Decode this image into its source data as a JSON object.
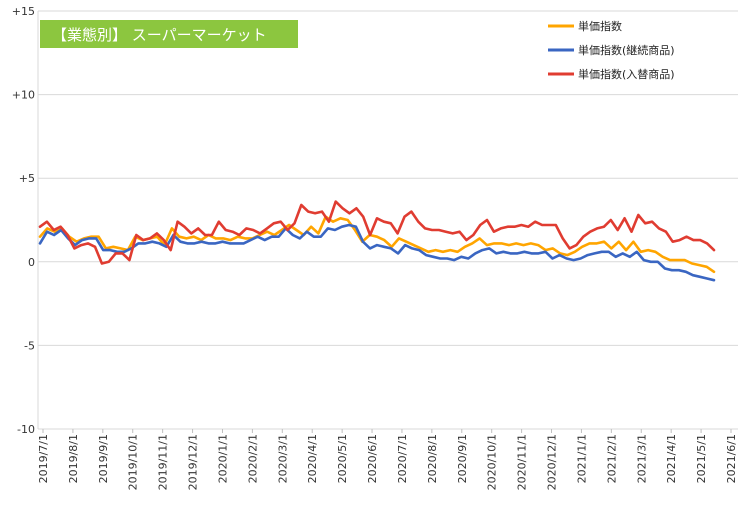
{
  "chart_data": {
    "type": "line",
    "title": "【業態別】 スーパーマーケット",
    "title_bg": "#8cc63f",
    "ylim": [
      -10,
      15
    ],
    "y_ticks": [
      "+15",
      "+10",
      "+5",
      "0",
      "-5",
      "-10"
    ],
    "y_tick_values": [
      15,
      10,
      5,
      0,
      -5,
      -10
    ],
    "x_tick_labels": [
      "2019/7/1",
      "2019/8/1",
      "2019/9/1",
      "2019/10/1",
      "2019/11/1",
      "2019/12/1",
      "2020/1/1",
      "2020/2/1",
      "2020/3/1",
      "2020/4/1",
      "2020/5/1",
      "2020/6/1",
      "2020/7/1",
      "2020/8/1",
      "2020/9/1",
      "2020/10/1",
      "2020/11/1",
      "2020/12/1",
      "2021/1/1",
      "2021/2/1",
      "2021/3/1",
      "2021/4/1",
      "2021/5/1",
      "2021/6/1"
    ],
    "grid": "horizontal",
    "legend_position": "top-right",
    "series": [
      {
        "name": "単価指数",
        "color": "#ffa500",
        "values": [
          1.5,
          2.0,
          1.8,
          2.0,
          1.5,
          1.2,
          1.4,
          1.5,
          1.5,
          0.8,
          0.9,
          0.8,
          0.7,
          1.5,
          1.3,
          1.4,
          1.5,
          1.0,
          2.0,
          1.5,
          1.4,
          1.5,
          1.3,
          1.6,
          1.4,
          1.4,
          1.3,
          1.5,
          1.4,
          1.4,
          1.6,
          1.8,
          1.6,
          1.9,
          2.2,
          1.9,
          1.6,
          2.1,
          1.7,
          2.7,
          2.4,
          2.6,
          2.5,
          1.9,
          1.2,
          1.6,
          1.5,
          1.3,
          0.9,
          1.4,
          1.2,
          1.0,
          0.8,
          0.6,
          0.7,
          0.6,
          0.7,
          0.6,
          0.9,
          1.1,
          1.4,
          1.0,
          1.1,
          1.1,
          1.0,
          1.1,
          1.0,
          1.1,
          1.0,
          0.7,
          0.8,
          0.5,
          0.4,
          0.6,
          0.9,
          1.1,
          1.1,
          1.2,
          0.8,
          1.2,
          0.7,
          1.2,
          0.6,
          0.7,
          0.6,
          0.3,
          0.1,
          0.1,
          0.1,
          -0.1,
          -0.2,
          -0.3,
          -0.6
        ]
      },
      {
        "name": "単価指数(継続商品)",
        "color": "#3a66c2",
        "values": [
          1.1,
          1.8,
          1.6,
          1.9,
          1.4,
          1.0,
          1.3,
          1.4,
          1.4,
          0.7,
          0.7,
          0.6,
          0.6,
          0.8,
          1.1,
          1.1,
          1.2,
          1.1,
          0.9,
          1.6,
          1.2,
          1.1,
          1.1,
          1.2,
          1.1,
          1.1,
          1.2,
          1.1,
          1.1,
          1.1,
          1.3,
          1.5,
          1.3,
          1.5,
          1.5,
          2.0,
          1.6,
          1.4,
          1.8,
          1.5,
          1.5,
          2.0,
          1.9,
          2.1,
          2.2,
          2.1,
          1.2,
          0.8,
          1.0,
          0.9,
          0.8,
          0.5,
          1.0,
          0.8,
          0.7,
          0.4,
          0.3,
          0.2,
          0.2,
          0.1,
          0.3,
          0.2,
          0.5,
          0.7,
          0.8,
          0.5,
          0.6,
          0.5,
          0.5,
          0.6,
          0.5,
          0.5,
          0.6,
          0.2,
          0.4,
          0.2,
          0.1,
          0.2,
          0.4,
          0.5,
          0.6,
          0.6,
          0.3,
          0.5,
          0.3,
          0.6,
          0.1,
          0.0,
          0.0,
          -0.4,
          -0.5,
          -0.5,
          -0.6,
          -0.8,
          -0.9,
          -1.0,
          -1.1
        ]
      },
      {
        "name": "単価指数(入替商品)",
        "color": "#e03c31",
        "values": [
          2.1,
          2.4,
          1.9,
          2.1,
          1.6,
          0.8,
          1.0,
          1.1,
          0.9,
          -0.1,
          0.0,
          0.5,
          0.5,
          0.1,
          1.6,
          1.3,
          1.4,
          1.7,
          1.3,
          0.7,
          2.4,
          2.1,
          1.7,
          2.0,
          1.6,
          1.6,
          2.4,
          1.9,
          1.8,
          1.6,
          2.0,
          1.9,
          1.7,
          2.0,
          2.3,
          2.4,
          1.9,
          2.3,
          3.4,
          3.0,
          2.9,
          3.0,
          2.4,
          3.6,
          3.2,
          2.9,
          3.2,
          2.7,
          1.6,
          2.6,
          2.4,
          2.3,
          1.7,
          2.7,
          3.0,
          2.4,
          2.0,
          1.9,
          1.9,
          1.8,
          1.7,
          1.8,
          1.3,
          1.6,
          2.2,
          2.5,
          1.8,
          2.0,
          2.1,
          2.1,
          2.2,
          2.1,
          2.4,
          2.2,
          2.2,
          2.2,
          1.4,
          0.8,
          1.0,
          1.5,
          1.8,
          2.0,
          2.1,
          2.5,
          1.9,
          2.6,
          1.8,
          2.8,
          2.3,
          2.4,
          2.0,
          1.8,
          1.2,
          1.3,
          1.5,
          1.3,
          1.3,
          1.1,
          0.7
        ]
      }
    ]
  }
}
